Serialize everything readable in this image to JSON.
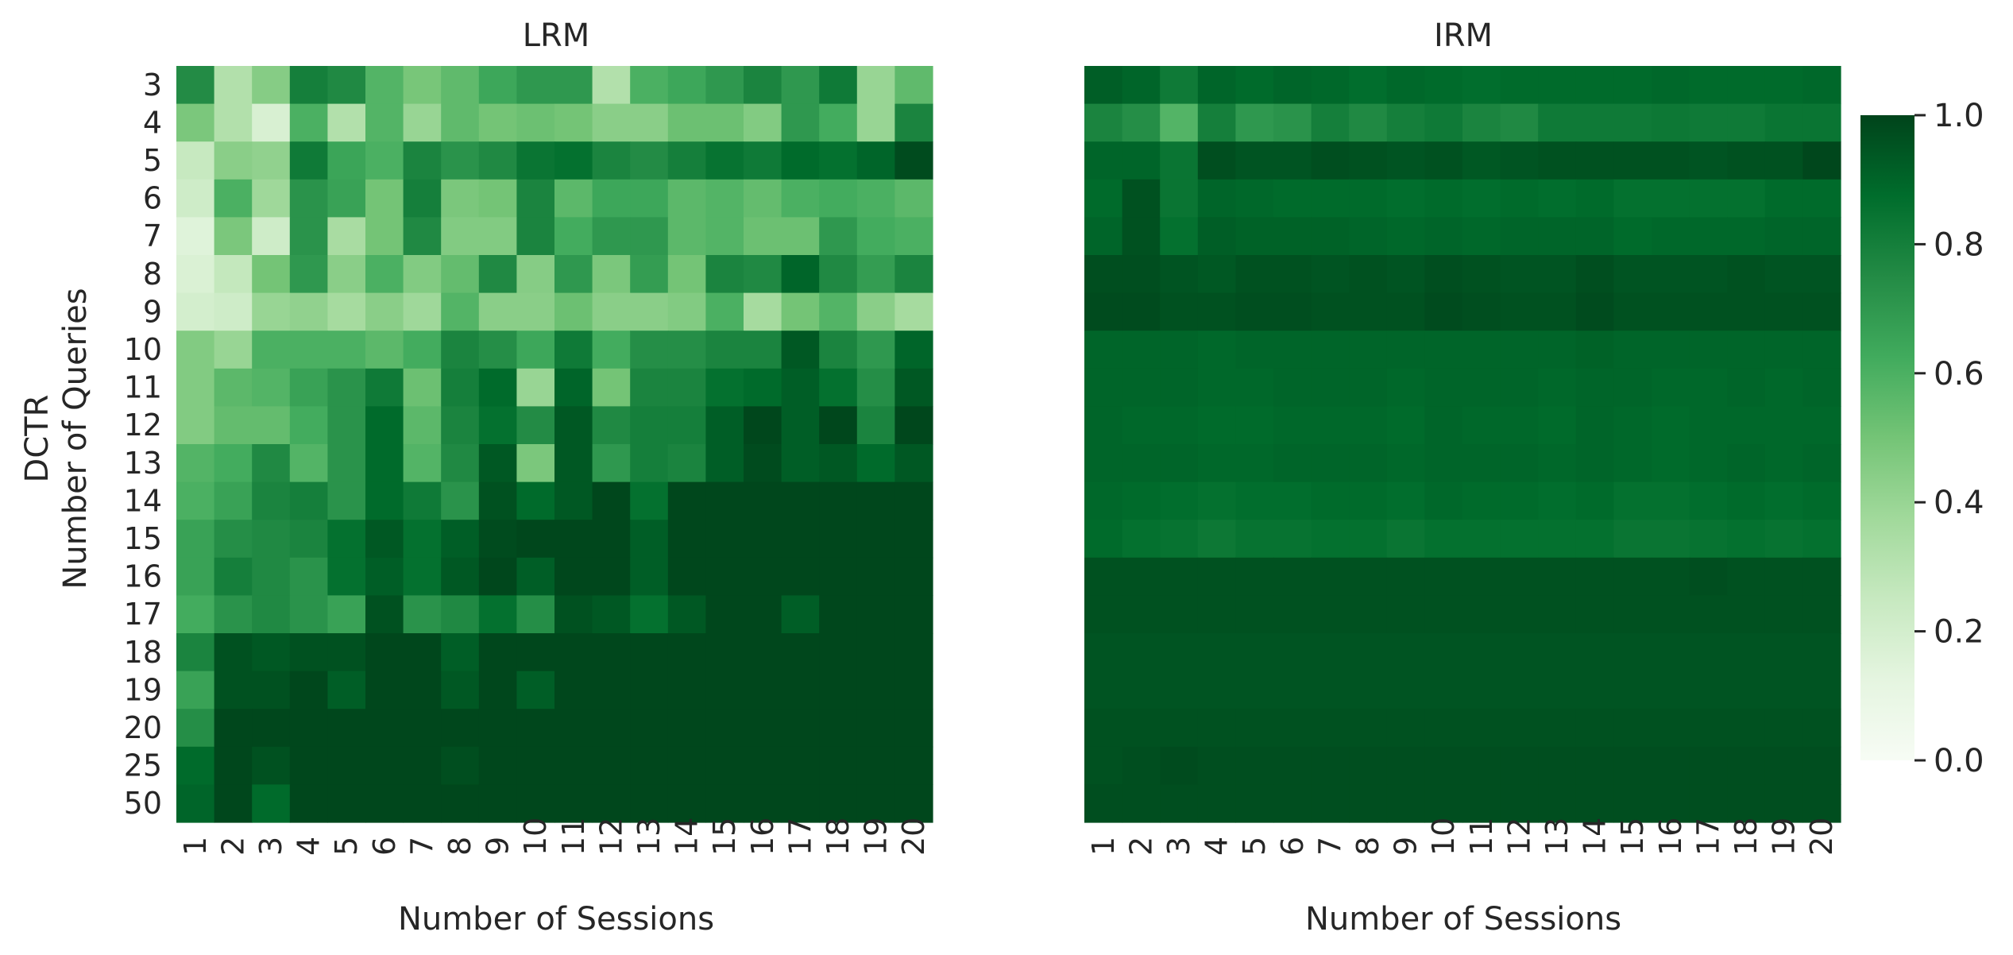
{
  "chart_data": [
    {
      "type": "heatmap",
      "title": "LRM",
      "xlabel": "Number of Sessions",
      "ylabel": [
        "DCTR",
        "Number of Queries"
      ],
      "x_categories": [
        "1",
        "2",
        "3",
        "4",
        "5",
        "6",
        "7",
        "8",
        "9",
        "10",
        "11",
        "12",
        "13",
        "14",
        "15",
        "16",
        "17",
        "18",
        "19",
        "20"
      ],
      "y_categories": [
        "3",
        "4",
        "5",
        "6",
        "7",
        "8",
        "9",
        "10",
        "11",
        "12",
        "13",
        "14",
        "15",
        "16",
        "17",
        "18",
        "19",
        "20",
        "25",
        "50"
      ],
      "values": [
        [
          0.75,
          0.32,
          0.45,
          0.8,
          0.76,
          0.58,
          0.49,
          0.55,
          0.64,
          0.7,
          0.7,
          0.32,
          0.6,
          0.64,
          0.7,
          0.78,
          0.7,
          0.82,
          0.4,
          0.55
        ],
        [
          0.48,
          0.32,
          0.18,
          0.6,
          0.32,
          0.58,
          0.4,
          0.55,
          0.5,
          0.52,
          0.5,
          0.44,
          0.44,
          0.52,
          0.52,
          0.46,
          0.7,
          0.62,
          0.4,
          0.78
        ],
        [
          0.25,
          0.44,
          0.42,
          0.82,
          0.65,
          0.6,
          0.78,
          0.72,
          0.76,
          0.84,
          0.86,
          0.78,
          0.75,
          0.8,
          0.85,
          0.82,
          0.88,
          0.86,
          0.9,
          0.98
        ],
        [
          0.22,
          0.6,
          0.38,
          0.72,
          0.66,
          0.5,
          0.8,
          0.48,
          0.5,
          0.78,
          0.56,
          0.64,
          0.64,
          0.56,
          0.58,
          0.54,
          0.6,
          0.62,
          0.6,
          0.56
        ],
        [
          0.15,
          0.48,
          0.22,
          0.72,
          0.35,
          0.5,
          0.76,
          0.46,
          0.46,
          0.78,
          0.62,
          0.7,
          0.7,
          0.56,
          0.58,
          0.52,
          0.52,
          0.7,
          0.62,
          0.6
        ],
        [
          0.17,
          0.26,
          0.5,
          0.7,
          0.44,
          0.6,
          0.46,
          0.54,
          0.76,
          0.45,
          0.7,
          0.48,
          0.68,
          0.5,
          0.78,
          0.76,
          0.9,
          0.76,
          0.68,
          0.78
        ],
        [
          0.2,
          0.22,
          0.4,
          0.42,
          0.36,
          0.44,
          0.38,
          0.58,
          0.44,
          0.44,
          0.52,
          0.44,
          0.44,
          0.46,
          0.6,
          0.36,
          0.5,
          0.58,
          0.44,
          0.36
        ],
        [
          0.46,
          0.4,
          0.6,
          0.6,
          0.6,
          0.56,
          0.62,
          0.78,
          0.74,
          0.64,
          0.82,
          0.62,
          0.74,
          0.74,
          0.78,
          0.78,
          0.94,
          0.78,
          0.7,
          0.9
        ],
        [
          0.46,
          0.56,
          0.58,
          0.66,
          0.72,
          0.82,
          0.52,
          0.8,
          0.88,
          0.4,
          0.9,
          0.5,
          0.78,
          0.78,
          0.86,
          0.88,
          0.92,
          0.86,
          0.74,
          0.94
        ],
        [
          0.46,
          0.54,
          0.54,
          0.62,
          0.72,
          0.88,
          0.56,
          0.78,
          0.86,
          0.75,
          0.94,
          0.76,
          0.8,
          0.8,
          0.92,
          0.99,
          0.92,
          0.99,
          0.78,
          0.99
        ],
        [
          0.58,
          0.62,
          0.76,
          0.58,
          0.72,
          0.88,
          0.58,
          0.76,
          0.94,
          0.48,
          0.94,
          0.7,
          0.8,
          0.78,
          0.92,
          0.98,
          0.92,
          0.94,
          0.88,
          0.94
        ],
        [
          0.6,
          0.66,
          0.78,
          0.8,
          0.72,
          0.88,
          0.82,
          0.72,
          0.96,
          0.88,
          0.94,
          0.99,
          0.86,
          0.99,
          0.99,
          0.99,
          0.99,
          0.99,
          0.99,
          0.99
        ],
        [
          0.66,
          0.74,
          0.76,
          0.78,
          0.86,
          0.94,
          0.86,
          0.92,
          0.98,
          0.99,
          0.99,
          0.99,
          0.92,
          0.99,
          0.99,
          0.99,
          0.99,
          0.99,
          0.99,
          0.99
        ],
        [
          0.66,
          0.8,
          0.76,
          0.72,
          0.86,
          0.92,
          0.86,
          0.94,
          0.99,
          0.92,
          0.99,
          0.99,
          0.92,
          0.99,
          0.99,
          0.99,
          0.99,
          0.99,
          0.99,
          0.99
        ],
        [
          0.62,
          0.72,
          0.76,
          0.72,
          0.66,
          0.96,
          0.72,
          0.76,
          0.86,
          0.74,
          0.96,
          0.94,
          0.86,
          0.94,
          0.99,
          0.99,
          0.92,
          0.99,
          0.99,
          0.99
        ],
        [
          0.78,
          0.96,
          0.94,
          0.96,
          0.96,
          0.99,
          0.99,
          0.92,
          0.99,
          0.99,
          0.99,
          0.99,
          0.99,
          0.99,
          0.99,
          0.99,
          0.99,
          0.99,
          0.99,
          0.99
        ],
        [
          0.66,
          0.96,
          0.96,
          0.99,
          0.92,
          0.99,
          0.99,
          0.94,
          0.99,
          0.92,
          0.99,
          0.99,
          0.99,
          0.99,
          0.99,
          0.99,
          0.99,
          0.99,
          0.99,
          0.99
        ],
        [
          0.74,
          0.99,
          0.99,
          0.99,
          0.99,
          0.99,
          0.99,
          0.99,
          0.99,
          0.99,
          0.99,
          0.99,
          0.99,
          0.99,
          0.99,
          0.99,
          0.99,
          0.99,
          0.99,
          0.99
        ],
        [
          0.88,
          0.99,
          0.96,
          0.99,
          0.99,
          0.99,
          0.99,
          0.97,
          0.99,
          0.99,
          0.99,
          0.99,
          0.99,
          0.99,
          0.99,
          0.99,
          0.99,
          0.99,
          0.99,
          0.99
        ],
        [
          0.9,
          0.99,
          0.88,
          0.99,
          0.99,
          0.99,
          0.99,
          0.99,
          0.99,
          0.99,
          0.99,
          0.99,
          0.99,
          0.99,
          0.99,
          0.99,
          0.99,
          0.99,
          0.99,
          0.99
        ]
      ],
      "vmin": 0.0,
      "vmax": 1.0
    },
    {
      "type": "heatmap",
      "title": "IRM",
      "xlabel": "Number of Sessions",
      "x_categories": [
        "1",
        "2",
        "3",
        "4",
        "5",
        "6",
        "7",
        "8",
        "9",
        "10",
        "11",
        "12",
        "13",
        "14",
        "15",
        "16",
        "17",
        "18",
        "19",
        "20"
      ],
      "y_categories": [
        "3",
        "4",
        "5",
        "6",
        "7",
        "8",
        "9",
        "10",
        "11",
        "12",
        "13",
        "14",
        "15",
        "16",
        "17",
        "18",
        "19",
        "20",
        "25",
        "50"
      ],
      "values": [
        [
          0.92,
          0.9,
          0.82,
          0.9,
          0.88,
          0.9,
          0.89,
          0.87,
          0.89,
          0.88,
          0.87,
          0.88,
          0.88,
          0.88,
          0.88,
          0.89,
          0.88,
          0.88,
          0.88,
          0.89
        ],
        [
          0.78,
          0.74,
          0.58,
          0.8,
          0.7,
          0.72,
          0.8,
          0.76,
          0.8,
          0.82,
          0.78,
          0.76,
          0.82,
          0.82,
          0.82,
          0.83,
          0.82,
          0.82,
          0.84,
          0.84
        ],
        [
          0.9,
          0.9,
          0.84,
          0.97,
          0.95,
          0.95,
          0.97,
          0.96,
          0.95,
          0.96,
          0.94,
          0.95,
          0.96,
          0.96,
          0.96,
          0.96,
          0.95,
          0.96,
          0.96,
          0.99
        ],
        [
          0.88,
          0.96,
          0.84,
          0.9,
          0.89,
          0.88,
          0.88,
          0.88,
          0.87,
          0.88,
          0.87,
          0.88,
          0.87,
          0.88,
          0.86,
          0.86,
          0.86,
          0.86,
          0.88,
          0.88
        ],
        [
          0.9,
          0.96,
          0.86,
          0.92,
          0.91,
          0.91,
          0.91,
          0.9,
          0.89,
          0.9,
          0.89,
          0.9,
          0.9,
          0.9,
          0.88,
          0.89,
          0.89,
          0.89,
          0.9,
          0.9
        ],
        [
          0.97,
          0.97,
          0.95,
          0.94,
          0.96,
          0.96,
          0.95,
          0.96,
          0.95,
          0.97,
          0.96,
          0.95,
          0.95,
          0.97,
          0.95,
          0.95,
          0.95,
          0.96,
          0.95,
          0.95
        ],
        [
          0.98,
          0.98,
          0.96,
          0.96,
          0.97,
          0.97,
          0.96,
          0.96,
          0.96,
          0.98,
          0.97,
          0.96,
          0.96,
          0.98,
          0.96,
          0.96,
          0.96,
          0.96,
          0.96,
          0.96
        ],
        [
          0.9,
          0.9,
          0.9,
          0.89,
          0.9,
          0.9,
          0.9,
          0.9,
          0.9,
          0.9,
          0.9,
          0.9,
          0.9,
          0.91,
          0.9,
          0.9,
          0.9,
          0.9,
          0.9,
          0.9
        ],
        [
          0.9,
          0.9,
          0.9,
          0.89,
          0.89,
          0.9,
          0.9,
          0.9,
          0.89,
          0.9,
          0.9,
          0.9,
          0.89,
          0.9,
          0.9,
          0.89,
          0.89,
          0.9,
          0.89,
          0.9
        ],
        [
          0.9,
          0.89,
          0.89,
          0.88,
          0.88,
          0.89,
          0.89,
          0.89,
          0.88,
          0.9,
          0.89,
          0.89,
          0.88,
          0.9,
          0.89,
          0.88,
          0.89,
          0.89,
          0.89,
          0.89
        ],
        [
          0.9,
          0.9,
          0.9,
          0.89,
          0.89,
          0.9,
          0.9,
          0.9,
          0.89,
          0.9,
          0.9,
          0.9,
          0.89,
          0.9,
          0.89,
          0.88,
          0.89,
          0.9,
          0.89,
          0.9
        ],
        [
          0.89,
          0.88,
          0.87,
          0.86,
          0.87,
          0.87,
          0.88,
          0.88,
          0.87,
          0.89,
          0.88,
          0.88,
          0.87,
          0.88,
          0.86,
          0.86,
          0.87,
          0.88,
          0.87,
          0.88
        ],
        [
          0.88,
          0.86,
          0.85,
          0.83,
          0.85,
          0.85,
          0.86,
          0.86,
          0.84,
          0.86,
          0.86,
          0.86,
          0.86,
          0.86,
          0.84,
          0.84,
          0.85,
          0.86,
          0.85,
          0.86
        ],
        [
          0.96,
          0.96,
          0.96,
          0.96,
          0.96,
          0.96,
          0.96,
          0.96,
          0.96,
          0.96,
          0.96,
          0.96,
          0.96,
          0.96,
          0.96,
          0.96,
          0.97,
          0.96,
          0.96,
          0.96
        ],
        [
          0.96,
          0.96,
          0.96,
          0.96,
          0.96,
          0.96,
          0.96,
          0.96,
          0.96,
          0.96,
          0.96,
          0.96,
          0.96,
          0.96,
          0.96,
          0.96,
          0.96,
          0.96,
          0.96,
          0.96
        ],
        [
          0.95,
          0.95,
          0.95,
          0.95,
          0.95,
          0.95,
          0.95,
          0.95,
          0.95,
          0.95,
          0.95,
          0.95,
          0.95,
          0.95,
          0.95,
          0.95,
          0.95,
          0.95,
          0.95,
          0.95
        ],
        [
          0.95,
          0.95,
          0.95,
          0.95,
          0.95,
          0.95,
          0.95,
          0.95,
          0.95,
          0.95,
          0.95,
          0.95,
          0.95,
          0.95,
          0.95,
          0.95,
          0.95,
          0.95,
          0.95,
          0.95
        ],
        [
          0.96,
          0.96,
          0.96,
          0.96,
          0.96,
          0.96,
          0.96,
          0.96,
          0.96,
          0.96,
          0.96,
          0.96,
          0.96,
          0.96,
          0.96,
          0.96,
          0.96,
          0.96,
          0.96,
          0.96
        ],
        [
          0.96,
          0.97,
          0.98,
          0.97,
          0.97,
          0.97,
          0.97,
          0.97,
          0.97,
          0.97,
          0.97,
          0.97,
          0.97,
          0.97,
          0.97,
          0.97,
          0.97,
          0.97,
          0.97,
          0.97
        ],
        [
          0.97,
          0.97,
          0.97,
          0.97,
          0.97,
          0.97,
          0.97,
          0.97,
          0.97,
          0.97,
          0.97,
          0.97,
          0.97,
          0.97,
          0.97,
          0.97,
          0.97,
          0.97,
          0.97,
          0.97
        ]
      ],
      "vmin": 0.0,
      "vmax": 1.0
    }
  ],
  "colorbar": {
    "ticks": [
      "0.0",
      "0.2",
      "0.4",
      "0.6",
      "0.8",
      "1.0"
    ],
    "colormap": "Greens",
    "colors": [
      "#f7fcf5",
      "#e5f5e0",
      "#c7e9c0",
      "#a1d99b",
      "#74c476",
      "#41ab5d",
      "#238b45",
      "#006d2c",
      "#00441b"
    ]
  }
}
